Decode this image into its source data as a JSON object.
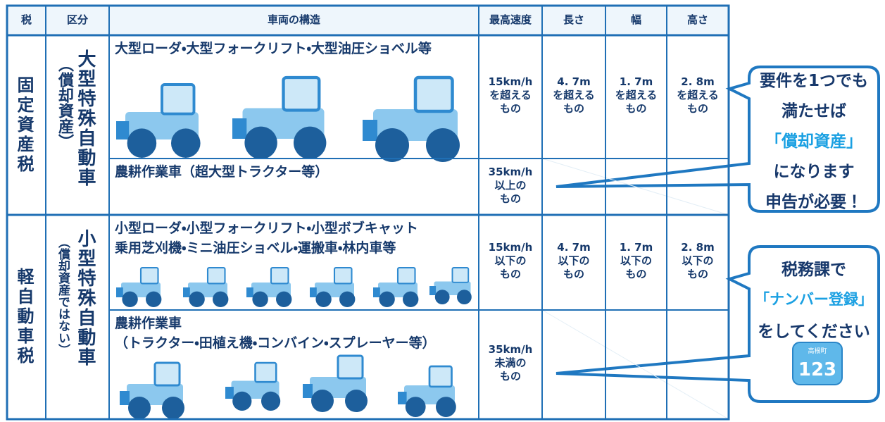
{
  "table": {
    "header": [
      "税",
      "区分",
      "車両の構造",
      "最高速度",
      "長さ",
      "幅",
      "高さ"
    ],
    "groups": [
      {
        "tax": "固定資産税",
        "category": "大型特殊自動車",
        "category_note": "（償却資産）",
        "rows": [
          {
            "structure": [
              "大型ローダ・大型フォークリフト・大型油圧ショベル等"
            ],
            "speed": [
              "15km/h",
              "を超える",
              "もの"
            ],
            "length": [
              "4. 7m",
              "を超える",
              "もの"
            ],
            "width": [
              "1. 7m",
              "を超える",
              "もの"
            ],
            "height": [
              "2. 8m",
              "を超える",
              "もの"
            ]
          },
          {
            "structure": [
              "農耕作業車（超大型トラクター等）"
            ],
            "speed": [
              "35km/h",
              "以上の",
              "もの"
            ]
          }
        ]
      },
      {
        "tax": "軽自動車税",
        "category": "小型特殊自動車",
        "category_note": "（償却資産ではない）",
        "rows": [
          {
            "structure": [
              "小型ローダ・小型フォークリフト・小型ボブキャット",
              "乗用芝刈機・ミニ油圧ショベル・運搬車・林内車等"
            ],
            "speed": [
              "15km/h",
              "以下の",
              "もの"
            ],
            "length": [
              "4. 7m",
              "以下の",
              "もの"
            ],
            "width": [
              "1. 7m",
              "以下の",
              "もの"
            ],
            "height": [
              "2. 8m",
              "以下の",
              "もの"
            ]
          },
          {
            "structure": [
              "農耕作業車",
              "（トラクター・田植え機・コンバイン・スプレーヤー等）"
            ],
            "speed": [
              "35km/h",
              "未満の",
              "もの"
            ]
          }
        ]
      }
    ]
  },
  "callouts": [
    {
      "lines": [
        "要件を1つでも",
        "満たせば",
        "「償却資産」",
        "になります",
        "申告が必要！"
      ]
    },
    {
      "lines": [
        "税務課で",
        "「ナンバー登録」",
        "をしてください"
      ],
      "plate": {
        "town": "高根町",
        "number": "123"
      }
    }
  ]
}
